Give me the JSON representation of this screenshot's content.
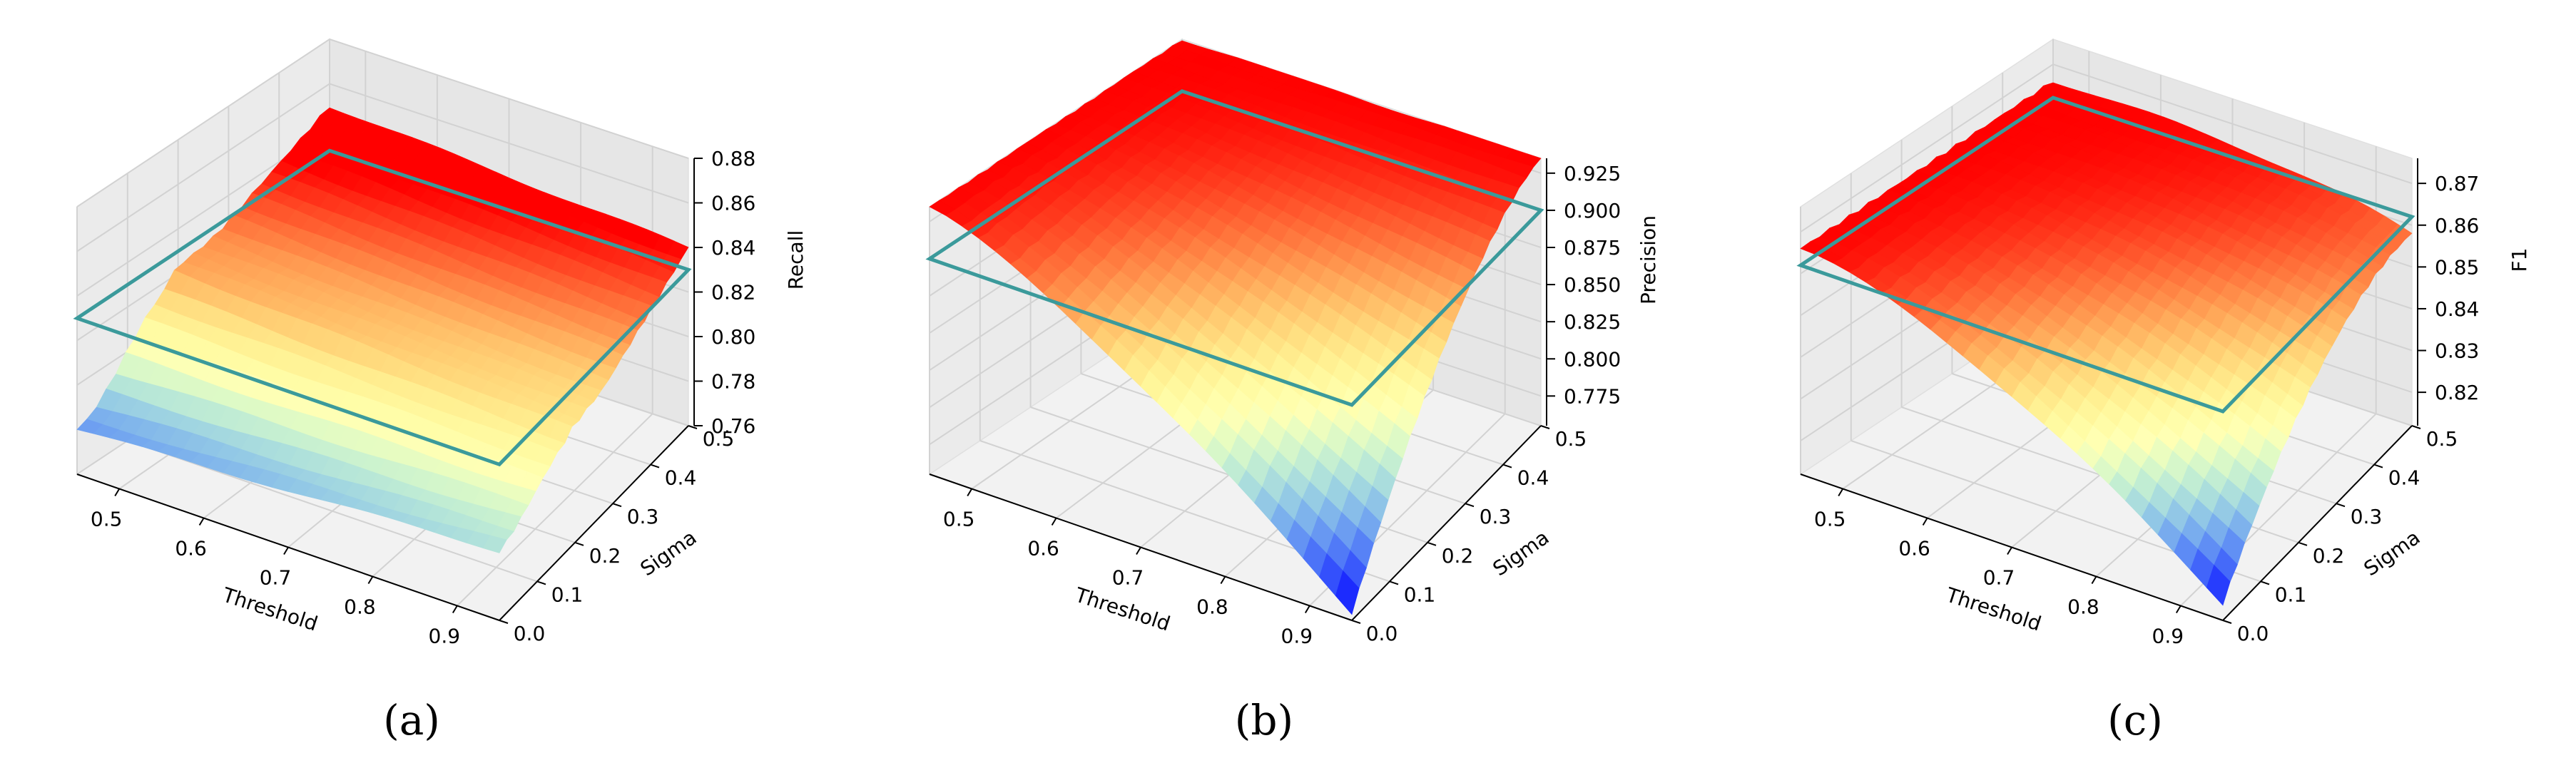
{
  "chart_data": [
    {
      "type": "surface3d",
      "panel_label": "(a)",
      "xlabel": "Threshold",
      "ylabel": "Sigma",
      "zlabel": "Recall",
      "x_ticks": [
        "0.5",
        "0.6",
        "0.7",
        "0.8",
        "0.9"
      ],
      "y_ticks": [
        "0.0",
        "0.1",
        "0.2",
        "0.3",
        "0.4",
        "0.5"
      ],
      "z_ticks": [
        "0.76",
        "0.78",
        "0.80",
        "0.82",
        "0.84",
        "0.86",
        "0.88"
      ],
      "xlim": [
        0.45,
        0.95
      ],
      "ylim": [
        0.0,
        0.5
      ],
      "zlim": [
        0.76,
        0.88
      ],
      "plane_z": 0.83,
      "surface_shape": "recall",
      "z_range_est": [
        0.765,
        0.84
      ],
      "colormap": "rainbow"
    },
    {
      "type": "surface3d",
      "panel_label": "(b)",
      "xlabel": "Threshold",
      "ylabel": "Sigma",
      "zlabel": "Precision",
      "x_ticks": [
        "0.5",
        "0.6",
        "0.7",
        "0.8",
        "0.9"
      ],
      "y_ticks": [
        "0.0",
        "0.1",
        "0.2",
        "0.3",
        "0.4",
        "0.5"
      ],
      "z_ticks": [
        "0.775",
        "0.800",
        "0.825",
        "0.850",
        "0.875",
        "0.900",
        "0.925"
      ],
      "xlim": [
        0.45,
        0.95
      ],
      "ylim": [
        0.0,
        0.5
      ],
      "zlim": [
        0.755,
        0.935
      ],
      "plane_z": 0.9,
      "surface_shape": "precision",
      "z_range_est": [
        0.76,
        0.935
      ],
      "colormap": "rainbow"
    },
    {
      "type": "surface3d",
      "panel_label": "(c)",
      "xlabel": "Threshold",
      "ylabel": "Sigma",
      "zlabel": "F1",
      "x_ticks": [
        "0.5",
        "0.6",
        "0.7",
        "0.8",
        "0.9"
      ],
      "y_ticks": [
        "0.0",
        "0.1",
        "0.2",
        "0.3",
        "0.4",
        "0.5"
      ],
      "z_ticks": [
        "0.82",
        "0.83",
        "0.84",
        "0.85",
        "0.86",
        "0.87"
      ],
      "xlim": [
        0.45,
        0.95
      ],
      "ylim": [
        0.0,
        0.5
      ],
      "zlim": [
        0.812,
        0.876
      ],
      "plane_z": 0.862,
      "surface_shape": "f1",
      "z_range_est": [
        0.815,
        0.866
      ],
      "colormap": "rainbow"
    }
  ]
}
